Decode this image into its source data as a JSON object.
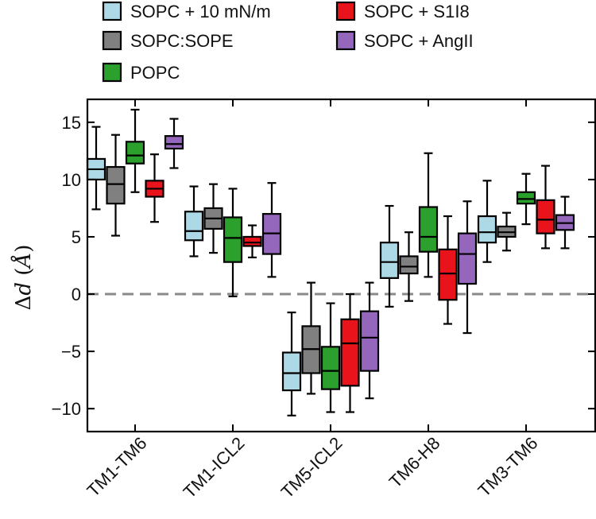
{
  "chart_data": {
    "type": "box",
    "title": "",
    "xlabel": "",
    "ylabel": "Δd (Å)",
    "ylabel_main": "Δ",
    "ylabel_var": "d",
    "ylabel_unit": "Å",
    "ylim": [
      -12,
      17
    ],
    "yticks": [
      -10,
      -5,
      0,
      5,
      10,
      15
    ],
    "ytick_labels": [
      "−10",
      "−5",
      "0",
      "5",
      "10",
      "15"
    ],
    "reference_line": {
      "y": 0,
      "style": "dashed",
      "color": "#8a8a8a"
    },
    "categories": [
      "TM1-TM6",
      "TM1-ICL2",
      "TM5-ICL2",
      "TM6-H8",
      "TM3-TM6"
    ],
    "legend": {
      "placement": "top",
      "columns": 2
    },
    "series": [
      {
        "name": "SOPC + 10 mN/m",
        "color": "#add8e6",
        "boxes": [
          {
            "whislo": 7.4,
            "q1": 10.0,
            "med": 10.9,
            "q3": 11.8,
            "whishi": 14.6
          },
          {
            "whislo": 3.3,
            "q1": 4.7,
            "med": 5.5,
            "q3": 7.2,
            "whishi": 9.4
          },
          {
            "whislo": -10.6,
            "q1": -8.4,
            "med": -6.9,
            "q3": -5.1,
            "whishi": -1.6
          },
          {
            "whislo": -1.1,
            "q1": 1.4,
            "med": 2.8,
            "q3": 4.5,
            "whishi": 7.7
          },
          {
            "whislo": 2.8,
            "q1": 4.5,
            "med": 5.4,
            "q3": 6.8,
            "whishi": 9.9
          }
        ]
      },
      {
        "name": "SOPC:SOPE",
        "color": "#808080",
        "boxes": [
          {
            "whislo": 5.1,
            "q1": 7.9,
            "med": 9.6,
            "q3": 11.1,
            "whishi": 13.9
          },
          {
            "whislo": 3.6,
            "q1": 5.7,
            "med": 6.6,
            "q3": 7.5,
            "whishi": 9.6
          },
          {
            "whislo": -8.7,
            "q1": -6.9,
            "med": -4.8,
            "q3": -2.8,
            "whishi": 1.0
          },
          {
            "whislo": -0.6,
            "q1": 1.8,
            "med": 2.4,
            "q3": 3.3,
            "whishi": 5.4
          },
          {
            "whislo": 3.8,
            "q1": 5.0,
            "med": 5.4,
            "q3": 5.9,
            "whishi": 7.1
          }
        ]
      },
      {
        "name": "POPC",
        "color": "#2ca02c",
        "boxes": [
          {
            "whislo": 8.9,
            "q1": 11.4,
            "med": 12.1,
            "q3": 13.3,
            "whishi": 16.1
          },
          {
            "whislo": -0.2,
            "q1": 2.8,
            "med": 4.9,
            "q3": 6.7,
            "whishi": 9.2
          },
          {
            "whislo": -10.3,
            "q1": -8.3,
            "med": -6.7,
            "q3": -4.6,
            "whishi": -0.8
          },
          {
            "whislo": 1.5,
            "q1": 3.7,
            "med": 5.0,
            "q3": 7.6,
            "whishi": 12.3
          },
          {
            "whislo": 6.1,
            "q1": 7.9,
            "med": 8.3,
            "q3": 8.9,
            "whishi": 10.5
          }
        ]
      },
      {
        "name": "SOPC + S1I8",
        "color": "#e8131b",
        "boxes": [
          {
            "whislo": 6.3,
            "q1": 8.5,
            "med": 9.2,
            "q3": 9.9,
            "whishi": 12.2
          },
          {
            "whislo": 3.2,
            "q1": 4.2,
            "med": 4.5,
            "q3": 5.0,
            "whishi": 6.0
          },
          {
            "whislo": -10.3,
            "q1": -8.0,
            "med": -4.3,
            "q3": -2.2,
            "whishi": 0.0
          },
          {
            "whislo": -2.6,
            "q1": -0.5,
            "med": 1.8,
            "q3": 3.9,
            "whishi": 6.8
          },
          {
            "whislo": 4.0,
            "q1": 5.3,
            "med": 6.5,
            "q3": 8.2,
            "whishi": 11.2
          }
        ]
      },
      {
        "name": "SOPC + AngII",
        "color": "#9467bd",
        "boxes": [
          {
            "whislo": 11.0,
            "q1": 12.7,
            "med": 13.1,
            "q3": 13.8,
            "whishi": 15.3
          },
          {
            "whislo": 1.5,
            "q1": 3.5,
            "med": 5.3,
            "q3": 7.0,
            "whishi": 9.7
          },
          {
            "whislo": -9.1,
            "q1": -6.7,
            "med": -3.8,
            "q3": -1.5,
            "whishi": 1.0
          },
          {
            "whislo": -3.4,
            "q1": 0.9,
            "med": 3.5,
            "q3": 5.3,
            "whishi": 8.1
          },
          {
            "whislo": 4.0,
            "q1": 5.6,
            "med": 6.2,
            "q3": 6.9,
            "whishi": 8.5
          }
        ]
      }
    ]
  }
}
